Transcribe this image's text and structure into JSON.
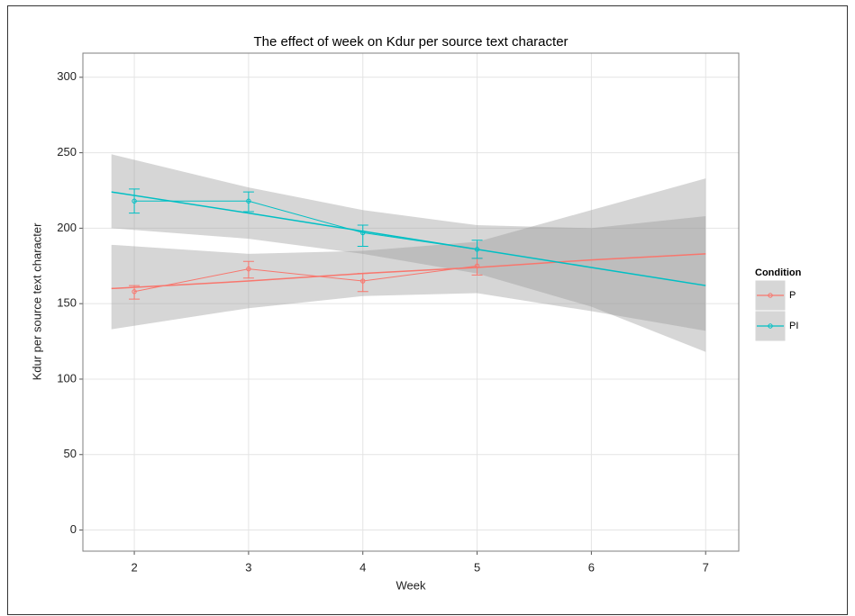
{
  "chart_data": {
    "type": "line",
    "title": "The effect of week on Kdur per source text character",
    "x_label": "Week",
    "y_label": "Kdur per source text character",
    "x": [
      2,
      3,
      4,
      5
    ],
    "xlim": [
      1.55,
      7.29
    ],
    "xticks": [
      2,
      3,
      4,
      5,
      6,
      7
    ],
    "ylim": [
      -14,
      316
    ],
    "yticks": [
      0,
      50,
      100,
      150,
      200,
      250,
      300
    ],
    "grid": true,
    "legend_title": "Condition",
    "legend_position": "right",
    "band_color": "#999999",
    "series": [
      {
        "name": "P",
        "color": "#F8766D",
        "values": [
          158,
          173,
          165,
          175
        ],
        "error_low": [
          153,
          167,
          158,
          169
        ],
        "error_high": [
          162,
          178,
          170,
          180
        ],
        "fit": {
          "x": [
            1.8,
            3,
            4,
            5,
            6,
            7
          ],
          "values": [
            160,
            165,
            170,
            174,
            179,
            183
          ],
          "lower": [
            133,
            147,
            155,
            157,
            145,
            132
          ],
          "upper": [
            189,
            183,
            185,
            191,
            212,
            233
          ]
        }
      },
      {
        "name": "PI",
        "color": "#00BFC4",
        "values": [
          218,
          218,
          197,
          186
        ],
        "error_low": [
          210,
          211,
          188,
          180
        ],
        "error_high": [
          226,
          224,
          202,
          192
        ],
        "fit": {
          "x": [
            1.8,
            3,
            4,
            5,
            6,
            7
          ],
          "values": [
            224,
            210,
            198,
            186,
            174,
            162
          ],
          "lower": [
            200,
            193,
            183,
            170,
            148,
            118
          ],
          "upper": [
            249,
            227,
            212,
            202,
            200,
            208
          ]
        }
      }
    ]
  }
}
